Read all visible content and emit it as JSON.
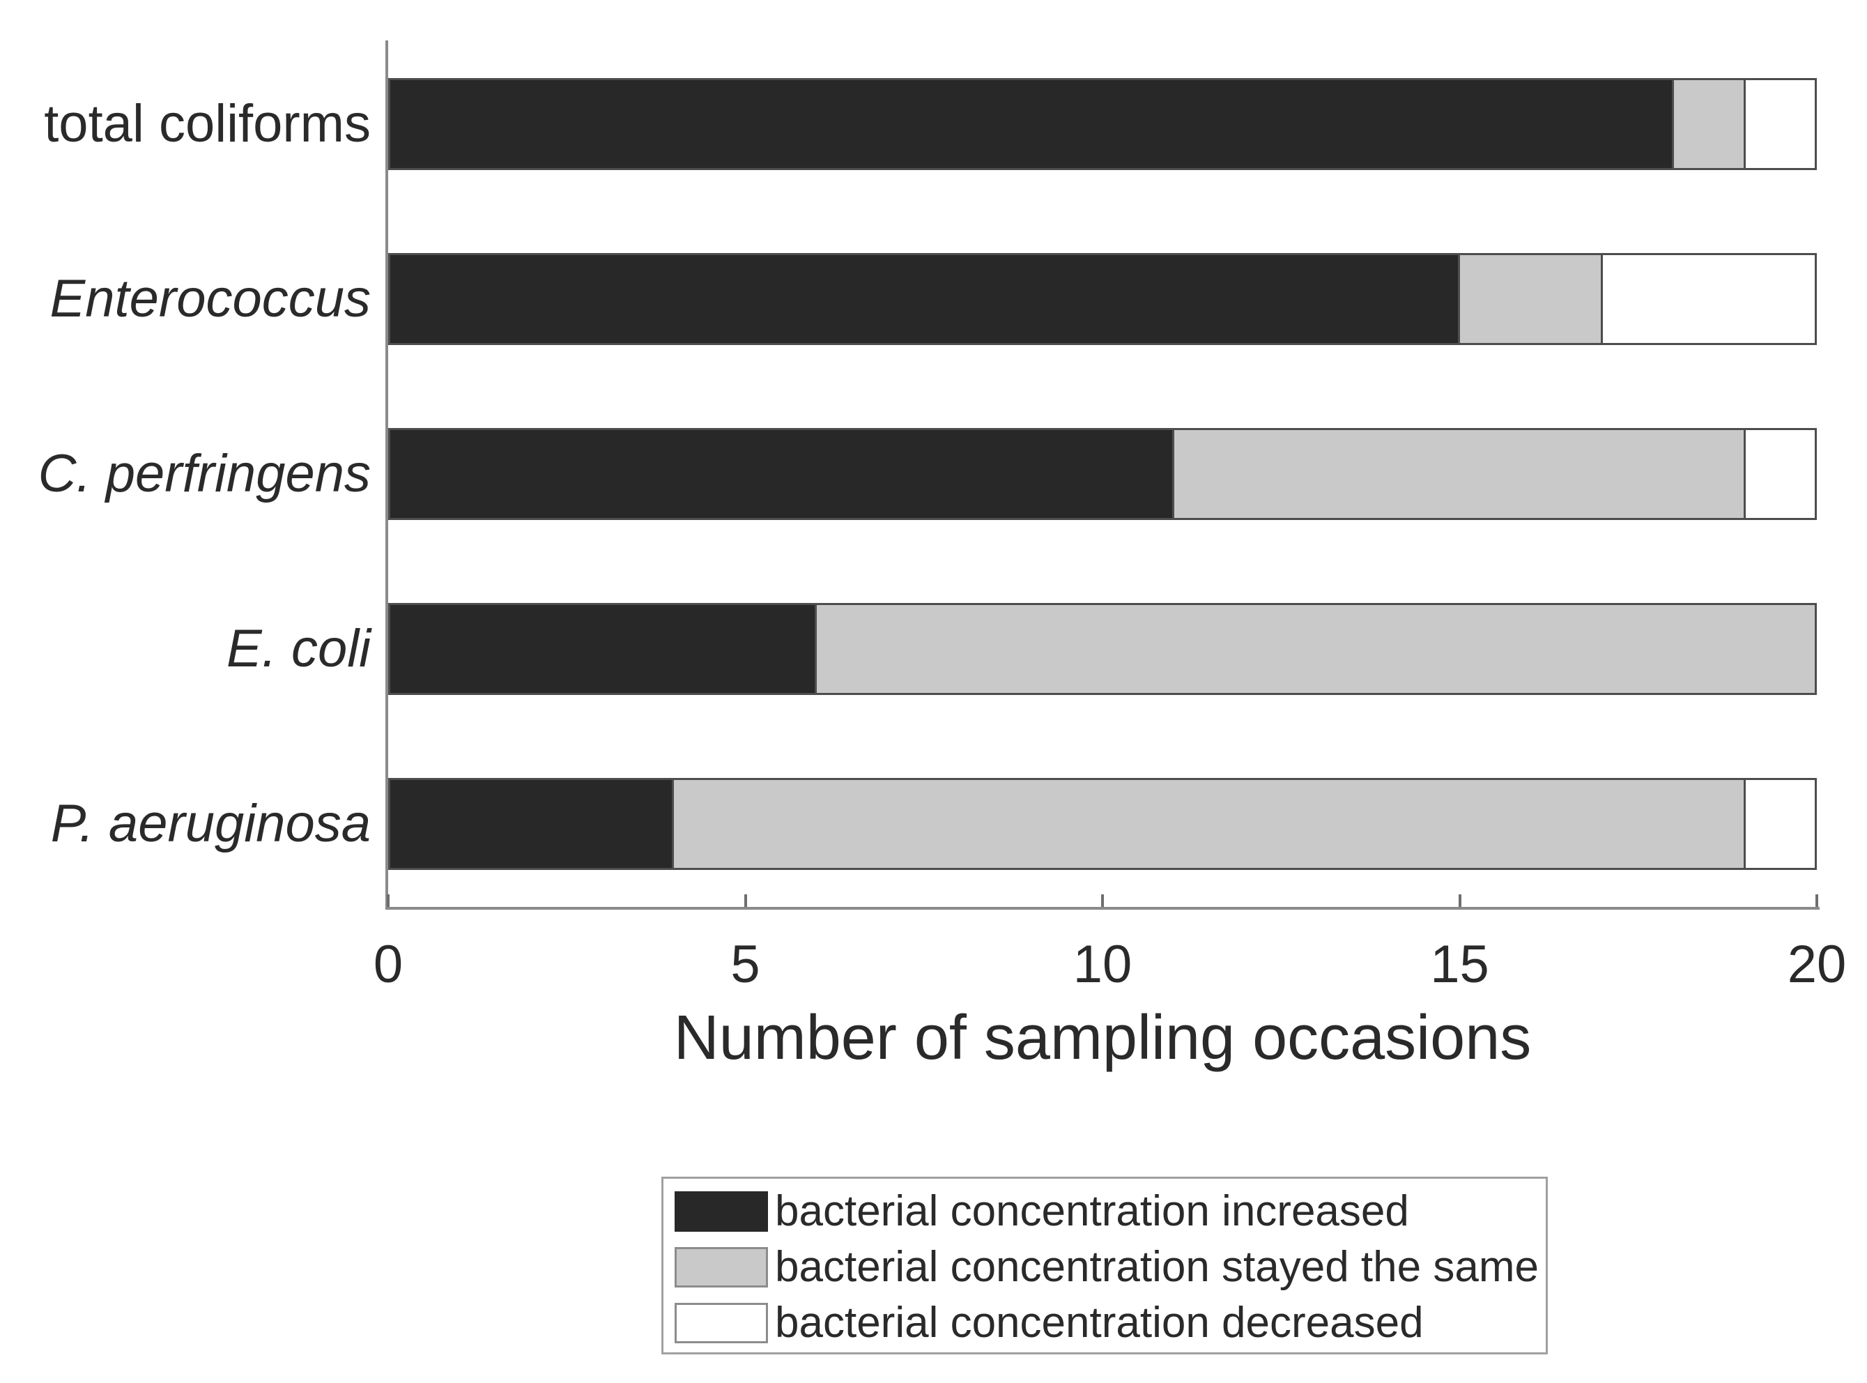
{
  "chart_data": {
    "type": "bar",
    "orientation": "horizontal",
    "stacked": true,
    "title": "",
    "xlabel": "Number of sampling occasions",
    "ylabel": "",
    "xlim": [
      0,
      20
    ],
    "x_ticks": [
      0,
      5,
      10,
      15,
      20
    ],
    "grid": false,
    "legend_position": "bottom-center",
    "categories": [
      "total coliforms",
      "Enterococcus",
      "C. perfringens",
      "E. coli",
      "P. aeruginosa"
    ],
    "category_font_styles": [
      "normal",
      "italic",
      "italic",
      "italic",
      "italic"
    ],
    "series": [
      {
        "name": "bacterial concentration increased",
        "key": "increased",
        "color": "#282828",
        "values": [
          18,
          15,
          11,
          6,
          4
        ]
      },
      {
        "name": "bacterial concentration stayed the same",
        "key": "stayed-the-same",
        "color": "#c9c9c9",
        "values": [
          1,
          2,
          8,
          14,
          15
        ]
      },
      {
        "name": "bacterial concentration decreased",
        "key": "decreased",
        "color": "#ffffff",
        "values": [
          1,
          3,
          1,
          0,
          1
        ]
      }
    ],
    "totals_per_category": [
      20,
      20,
      20,
      20,
      20
    ]
  },
  "colors": {
    "background": "#ffffff",
    "increased": "#282828",
    "stayed_the_same": "#c9c9c9",
    "decreased": "#ffffff",
    "bar_border": "#4d4d4d",
    "axis_line": "#8a8a8a",
    "tick": "#6e6e6e",
    "text": "#2a2a2a",
    "legend_border": "#a0a0a0",
    "legend_swatch_border": "#8c8c8c"
  }
}
